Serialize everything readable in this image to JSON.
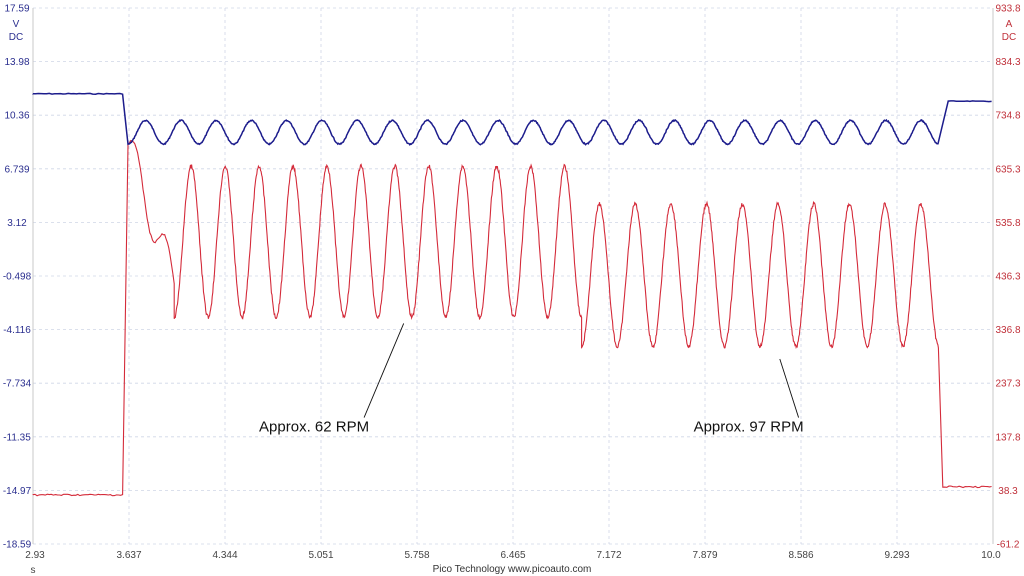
{
  "chart_data": {
    "type": "line",
    "title": "",
    "x_unit": "s",
    "x_ticks": [
      "2.93",
      "3.637",
      "4.344",
      "5.051",
      "5.758",
      "6.465",
      "7.172",
      "7.879",
      "8.586",
      "9.293",
      "10.0"
    ],
    "xlim": [
      2.93,
      10.0
    ],
    "left_axis": {
      "unit": "V",
      "coupling": "DC",
      "ticks": [
        "17.59",
        "13.98",
        "10.36",
        "6.739",
        "3.12",
        "-0.498",
        "-4.116",
        "-7.734",
        "-11.35",
        "-14.97",
        "-18.59"
      ],
      "ylim": [
        -18.59,
        17.59
      ],
      "color": "#2b2f8f"
    },
    "right_axis": {
      "unit": "A",
      "coupling": "DC",
      "ticks": [
        "933.8",
        "834.3",
        "734.8",
        "635.3",
        "535.8",
        "436.3",
        "336.8",
        "237.3",
        "137.8",
        "38.3",
        "-61.2"
      ],
      "ylim": [
        -61.2,
        933.8
      ],
      "color": "#c0303a"
    },
    "grid": true,
    "series": [
      {
        "axis": "left",
        "color": "#1c1c8c",
        "segments": [
          {
            "x_start": 2.93,
            "x_end": 3.6,
            "y": 11.8
          },
          {
            "x_start": 3.63,
            "x_end": 9.6,
            "y_mean": 9.2,
            "amplitude": 0.8,
            "cycles": 23
          },
          {
            "x_start": 9.67,
            "x_end": 10.0,
            "y": 11.3
          }
        ]
      },
      {
        "axis": "right",
        "color": "#d42b3a",
        "segments": [
          {
            "x_start": 2.93,
            "x_end": 3.6,
            "y": 30
          },
          {
            "x_start": 3.63,
            "x_end": 3.75,
            "y_start": 680,
            "y_end": 470
          },
          {
            "x_start": 3.97,
            "x_end": 6.97,
            "y_min": 360,
            "y_max": 640,
            "cycles": 12
          },
          {
            "x_start": 6.97,
            "x_end": 9.6,
            "y_min": 305,
            "y_max": 570,
            "cycles": 10
          },
          {
            "x_start": 9.63,
            "x_end": 10.0,
            "y": 45
          }
        ]
      }
    ],
    "annotations": [
      {
        "text": "Approx. 62 RPM",
        "x": 5.0,
        "y_left": -11.0,
        "arrow_to_x": 5.66,
        "arrow_to_y_left": -3.7
      },
      {
        "text": "Approx. 97 RPM",
        "x": 8.2,
        "y_left": -11.0,
        "arrow_to_x": 8.43,
        "arrow_to_y_left": -6.1
      }
    ]
  },
  "footer": "Pico Technology   www.picoauto.com"
}
